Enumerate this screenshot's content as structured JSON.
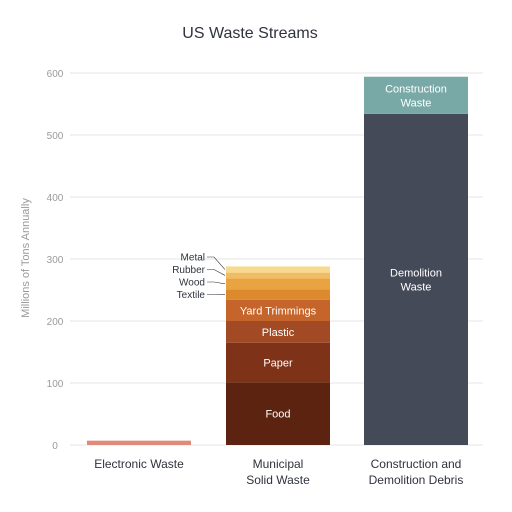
{
  "chart_data": {
    "type": "bar",
    "stacked": true,
    "title": "US Waste Streams",
    "xlabel": "",
    "ylabel": "Millions of Tons Annually",
    "ylim": [
      0,
      600
    ],
    "yticks": [
      0,
      100,
      200,
      300,
      400,
      500,
      600
    ],
    "grid": true,
    "categories": [
      [
        "Electronic Waste"
      ],
      [
        "Municipal",
        "Solid Waste"
      ],
      [
        "Construction and",
        "Demolition Debris"
      ]
    ],
    "stacks": [
      {
        "category_index": 0,
        "segments": [
          {
            "name": "",
            "value": 7,
            "color": "#e08a7a",
            "label_lines": []
          }
        ]
      },
      {
        "category_index": 1,
        "segments": [
          {
            "name": "Food",
            "value": 101,
            "color": "#5c2410",
            "label_lines": [
              "Food"
            ],
            "label_inside": true
          },
          {
            "name": "Paper",
            "value": 64,
            "color": "#7e3319",
            "label_lines": [
              "Paper"
            ],
            "label_inside": true
          },
          {
            "name": "Plastic",
            "value": 35,
            "color": "#a24a23",
            "label_lines": [
              "Plastic"
            ],
            "label_inside": true
          },
          {
            "name": "Yard Trimmings",
            "value": 34,
            "color": "#c5652c",
            "label_lines": [
              "Yard Trimmings"
            ],
            "label_inside": true
          },
          {
            "name": "Textile",
            "value": 17,
            "color": "#dc8a2d",
            "label_lines": [
              "Textile"
            ],
            "label_inside": false
          },
          {
            "name": "Wood",
            "value": 18,
            "color": "#e9a340",
            "label_lines": [
              "Wood"
            ],
            "label_inside": false
          },
          {
            "name": "Rubber",
            "value": 9,
            "color": "#f1bd63",
            "label_lines": [
              "Rubber"
            ],
            "label_inside": false
          },
          {
            "name": "Metal",
            "value": 10,
            "color": "#f7d98f",
            "label_lines": [
              "Metal"
            ],
            "label_inside": false
          }
        ]
      },
      {
        "category_index": 2,
        "segments": [
          {
            "name": "Demolition Waste",
            "value": 534,
            "color": "#454a58",
            "label_lines": [
              "Demolition",
              "Waste"
            ],
            "label_inside": true
          },
          {
            "name": "Construction Waste",
            "value": 60,
            "color": "#79a9a7",
            "label_lines": [
              "Construction",
              "Waste"
            ],
            "label_inside": true
          }
        ]
      }
    ]
  }
}
